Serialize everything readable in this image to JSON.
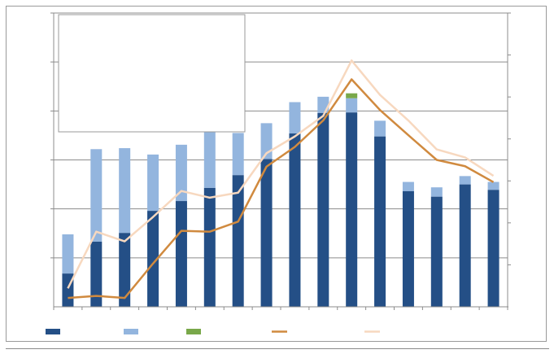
{
  "chart_data": {
    "type": "bar",
    "title": "",
    "xlabel": "",
    "ylabel": "",
    "categories": [
      "",
      "",
      "",
      "",
      "",
      "",
      "",
      "",
      "",
      "",
      "",
      "",
      "",
      "",
      "",
      ""
    ],
    "ylim": [
      0,
      60
    ],
    "y2lim": [
      0,
      70
    ],
    "grid": true,
    "legend_position": "bottom",
    "series": [
      {
        "kind": "bar",
        "stack": "a",
        "color": "#244f86",
        "values": [
          6.8,
          13.3,
          15.1,
          19.6,
          21.6,
          24.3,
          26.9,
          30.2,
          35.4,
          39.6,
          39.7,
          34.8,
          23.6,
          22.5,
          25.0,
          23.9
        ]
      },
      {
        "kind": "bar",
        "stack": "a",
        "color": "#93b5de",
        "values": [
          8.0,
          18.9,
          17.3,
          11.5,
          11.5,
          11.6,
          8.6,
          7.3,
          6.4,
          3.3,
          2.9,
          3.2,
          1.9,
          1.9,
          1.7,
          1.6
        ]
      },
      {
        "kind": "bar",
        "stack": "a",
        "color": "#79a84a",
        "values": [
          0,
          0,
          0,
          0,
          0,
          0,
          0,
          0,
          0,
          0,
          1.0,
          0,
          0,
          0,
          0,
          0
        ]
      },
      {
        "kind": "line",
        "axis": "right",
        "color": "#d08a3f",
        "values": [
          2.1,
          2.6,
          2.1,
          10.3,
          18.1,
          17.9,
          20.3,
          33.4,
          38.1,
          44.4,
          54.2,
          46.9,
          40.9,
          35.0,
          33.5,
          29.7
        ]
      },
      {
        "kind": "line",
        "axis": "right",
        "color": "#f7d8bf",
        "values": [
          4.4,
          17.9,
          15.6,
          21.4,
          27.6,
          26.0,
          27.2,
          36.6,
          40.6,
          45.5,
          58.7,
          50.5,
          44.4,
          37.5,
          35.6,
          31.2
        ]
      }
    ]
  }
}
